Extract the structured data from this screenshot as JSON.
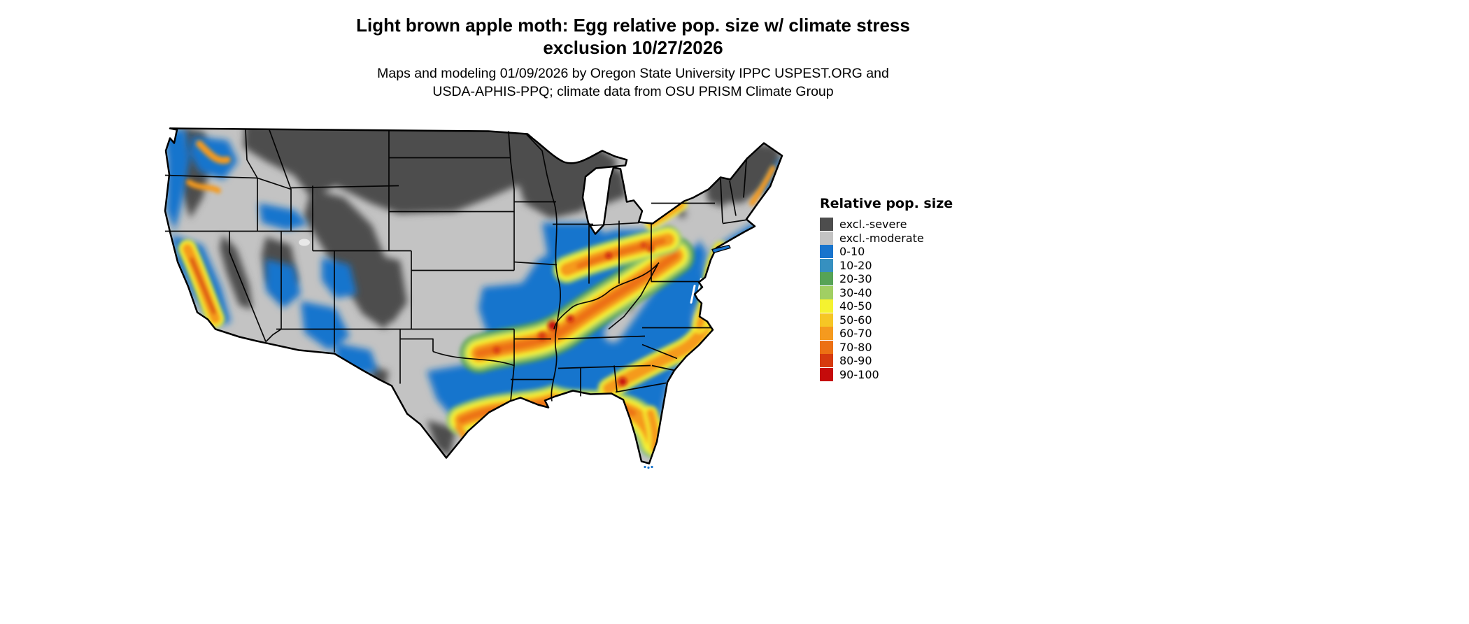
{
  "header": {
    "title_line1": "Light brown apple moth: Egg relative pop. size w/ climate stress",
    "title_line2": "exclusion 10/27/2026",
    "subtitle_line1": "Maps and modeling 01/09/2026 by Oregon State University IPPC USPEST.ORG and",
    "subtitle_line2": "USDA-APHIS-PPQ; climate data from OSU PRISM Climate Group"
  },
  "legend": {
    "title": "Relative pop. size",
    "items": [
      {
        "label": "excl.-severe",
        "color": "#4D4D4D"
      },
      {
        "label": "excl.-moderate",
        "color": "#C3C3C3"
      },
      {
        "label": "0-10",
        "color": "#1874CD"
      },
      {
        "label": "10-20",
        "color": "#3690C0"
      },
      {
        "label": "20-30",
        "color": "#56A356"
      },
      {
        "label": "30-40",
        "color": "#A1CF63"
      },
      {
        "label": "40-50",
        "color": "#F5F230"
      },
      {
        "label": "50-60",
        "color": "#F6C625"
      },
      {
        "label": "60-70",
        "color": "#F59A1E"
      },
      {
        "label": "70-80",
        "color": "#EC7014"
      },
      {
        "label": "80-90",
        "color": "#D63A0E"
      },
      {
        "label": "90-100",
        "color": "#C50B0B"
      }
    ]
  },
  "map": {
    "area_depicted": "Contiguous United States",
    "border_color": "#000000",
    "background_color": "#FFFFFF"
  }
}
